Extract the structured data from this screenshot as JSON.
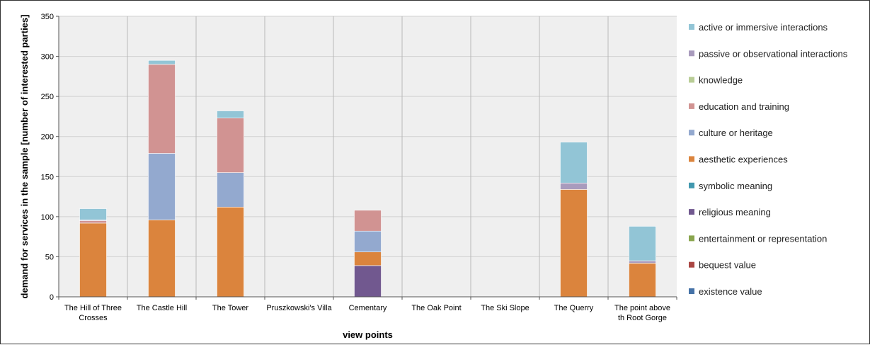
{
  "chart_data": {
    "type": "bar",
    "stacked": true,
    "xlabel": "view points",
    "ylabel": "demand for services in the sample [number of interested parties]",
    "ylim": [
      0,
      350
    ],
    "yticks": [
      0,
      50,
      100,
      150,
      200,
      250,
      300,
      350
    ],
    "grid": true,
    "legend_position": "right",
    "categories": [
      [
        "The Hill of Three",
        "Crosses"
      ],
      [
        "The Castle Hill"
      ],
      [
        "The Tower"
      ],
      [
        "Pruszkowski's Villa"
      ],
      [
        "Cementary"
      ],
      [
        "The Oak Point"
      ],
      [
        "The Ski Slope"
      ],
      [
        "The Querry"
      ],
      [
        "The point above",
        "th Root Gorge"
      ]
    ],
    "series": [
      {
        "name": "existence value",
        "color": "#4572a7",
        "values": [
          0,
          0,
          0,
          0,
          0,
          0,
          0,
          0,
          0
        ]
      },
      {
        "name": "bequest value",
        "color": "#aa4643",
        "values": [
          0,
          0,
          0,
          0,
          0,
          0,
          0,
          0,
          0
        ]
      },
      {
        "name": "entertainment or representation",
        "color": "#89a54e",
        "values": [
          0,
          0,
          0,
          0,
          0,
          0,
          0,
          0,
          0
        ]
      },
      {
        "name": "religious meaning",
        "color": "#71588f",
        "values": [
          0,
          0,
          0,
          0,
          39,
          0,
          0,
          0,
          0
        ]
      },
      {
        "name": "symbolic meaning",
        "color": "#4198af",
        "values": [
          0,
          0,
          0,
          0,
          0,
          0,
          0,
          0,
          0
        ]
      },
      {
        "name": "aesthetic experiences",
        "color": "#db843d",
        "values": [
          92,
          96,
          112,
          0,
          17,
          0,
          0,
          134,
          42
        ]
      },
      {
        "name": "culture or heritage",
        "color": "#93a9cf",
        "values": [
          0,
          83,
          43,
          0,
          26,
          0,
          0,
          0,
          0
        ]
      },
      {
        "name": "education and training",
        "color": "#d19392",
        "values": [
          3,
          111,
          68,
          0,
          26,
          0,
          0,
          0,
          0
        ]
      },
      {
        "name": "knowledge",
        "color": "#b9cd96",
        "values": [
          0,
          0,
          0,
          0,
          0,
          0,
          0,
          0,
          0
        ]
      },
      {
        "name": "passive or observational interactions",
        "color": "#a99bbd",
        "values": [
          1,
          0,
          0,
          0,
          0,
          0,
          0,
          8,
          3
        ]
      },
      {
        "name": "active or immersive interactions",
        "color": "#92c5d6",
        "values": [
          14,
          5,
          9,
          0,
          0,
          0,
          0,
          51,
          43
        ]
      }
    ]
  }
}
